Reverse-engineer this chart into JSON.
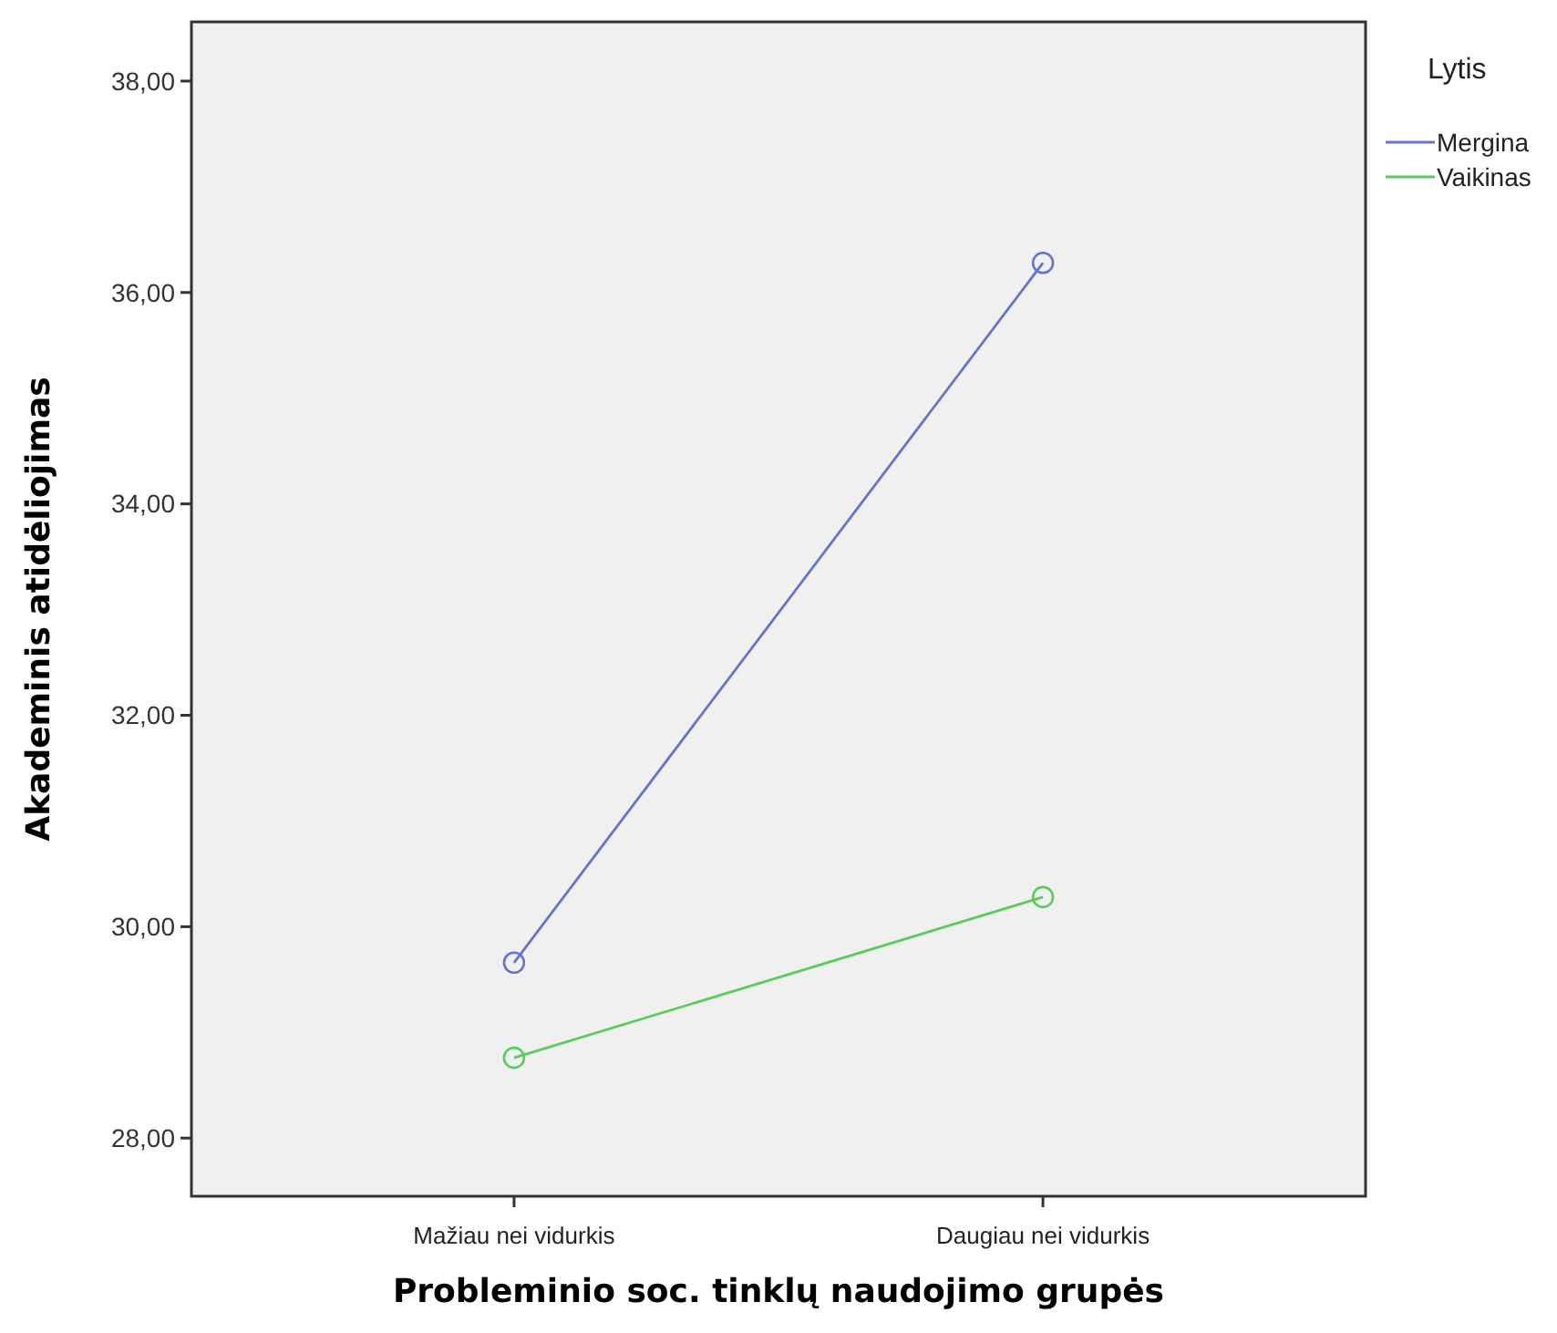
{
  "chart_data": {
    "type": "line",
    "xlabel": "Probleminio soc. tinklų naudojimo grupės",
    "ylabel": "Akademinis atidėliojimas",
    "legend_title": "Lytis",
    "categories": [
      "Mažiau nei vidurkis",
      "Daugiau nei vidurkis"
    ],
    "series": [
      {
        "name": "Mergina",
        "color": "#6674c8",
        "values": [
          29.66,
          36.28
        ]
      },
      {
        "name": "Vaikinas",
        "color": "#5ccb5c",
        "values": [
          28.76,
          30.28
        ]
      }
    ],
    "ylim": [
      27.45,
      38.56
    ],
    "yticks": [
      {
        "value": 28,
        "label": "28,00"
      },
      {
        "value": 30,
        "label": "30,00"
      },
      {
        "value": 32,
        "label": "32,00"
      },
      {
        "value": 34,
        "label": "34,00"
      },
      {
        "value": 36,
        "label": "36,00"
      },
      {
        "value": 38,
        "label": "38,00"
      }
    ],
    "grid": false,
    "legend": "top right",
    "marker": "circle",
    "line_style": "solid"
  }
}
